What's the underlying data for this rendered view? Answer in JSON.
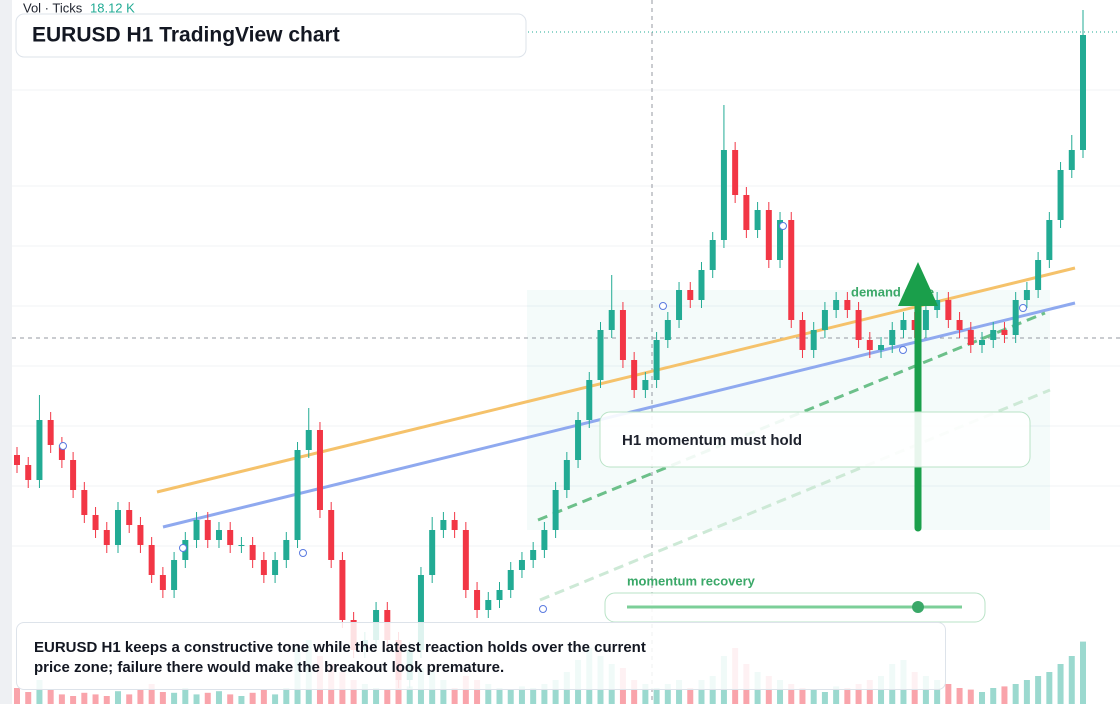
{
  "chart_data": {
    "type": "candlestick",
    "title": "EURUSD H1 TradingView chart",
    "vol_label": "Vol · Ticks",
    "vol_value": "18.12 K",
    "up_color": "#22ab94",
    "down_color": "#f23645",
    "ylim": [
      0,
      700
    ],
    "vlim": [
      0,
      100
    ],
    "candles": [
      [
        245,
        253,
        227,
        235
      ],
      [
        235,
        243,
        212,
        220
      ],
      [
        220,
        305,
        212,
        280
      ],
      [
        280,
        288,
        247,
        255
      ],
      [
        255,
        263,
        232,
        240
      ],
      [
        240,
        248,
        202,
        210
      ],
      [
        210,
        218,
        177,
        185
      ],
      [
        185,
        193,
        162,
        170
      ],
      [
        170,
        178,
        147,
        155
      ],
      [
        155,
        198,
        147,
        190
      ],
      [
        190,
        198,
        167,
        175
      ],
      [
        175,
        183,
        147,
        155
      ],
      [
        155,
        163,
        117,
        125
      ],
      [
        125,
        133,
        102,
        110
      ],
      [
        110,
        148,
        102,
        140
      ],
      [
        140,
        168,
        132,
        160
      ],
      [
        160,
        188,
        152,
        180
      ],
      [
        180,
        188,
        152,
        160
      ],
      [
        160,
        178,
        152,
        170
      ],
      [
        170,
        178,
        147,
        155
      ],
      [
        155,
        163,
        147,
        155
      ],
      [
        155,
        163,
        132,
        140
      ],
      [
        140,
        148,
        117,
        125
      ],
      [
        125,
        148,
        117,
        140
      ],
      [
        140,
        168,
        132,
        160
      ],
      [
        160,
        258,
        152,
        250
      ],
      [
        250,
        292,
        242,
        270
      ],
      [
        270,
        278,
        182,
        190
      ],
      [
        190,
        198,
        132,
        140
      ],
      [
        140,
        148,
        72,
        80
      ],
      [
        80,
        88,
        42,
        50
      ],
      [
        50,
        68,
        42,
        60
      ],
      [
        60,
        98,
        52,
        90
      ],
      [
        90,
        98,
        52,
        60
      ],
      [
        60,
        68,
        12,
        20
      ],
      [
        20,
        58,
        12,
        50
      ],
      [
        50,
        133,
        42,
        125
      ],
      [
        125,
        183,
        117,
        170
      ],
      [
        170,
        188,
        162,
        180
      ],
      [
        180,
        188,
        162,
        170
      ],
      [
        170,
        178,
        102,
        110
      ],
      [
        110,
        118,
        82,
        90
      ],
      [
        90,
        108,
        82,
        100
      ],
      [
        100,
        118,
        92,
        110
      ],
      [
        110,
        138,
        102,
        130
      ],
      [
        130,
        148,
        122,
        140
      ],
      [
        140,
        158,
        132,
        150
      ],
      [
        150,
        178,
        142,
        170
      ],
      [
        170,
        218,
        162,
        210
      ],
      [
        210,
        248,
        202,
        240
      ],
      [
        240,
        288,
        232,
        280
      ],
      [
        280,
        328,
        272,
        320
      ],
      [
        320,
        378,
        312,
        370
      ],
      [
        370,
        425,
        362,
        390
      ],
      [
        390,
        398,
        332,
        340
      ],
      [
        340,
        348,
        302,
        310
      ],
      [
        310,
        328,
        302,
        320
      ],
      [
        320,
        368,
        312,
        360
      ],
      [
        360,
        388,
        352,
        380
      ],
      [
        380,
        418,
        372,
        410
      ],
      [
        410,
        418,
        392,
        400
      ],
      [
        400,
        438,
        392,
        430
      ],
      [
        430,
        468,
        422,
        460
      ],
      [
        460,
        595,
        452,
        550
      ],
      [
        550,
        558,
        497,
        505
      ],
      [
        505,
        513,
        462,
        470
      ],
      [
        470,
        498,
        462,
        490
      ],
      [
        490,
        498,
        432,
        440
      ],
      [
        440,
        488,
        432,
        480
      ],
      [
        480,
        488,
        372,
        380
      ],
      [
        380,
        388,
        342,
        350
      ],
      [
        350,
        378,
        342,
        370
      ],
      [
        370,
        398,
        362,
        390
      ],
      [
        390,
        408,
        382,
        400
      ],
      [
        400,
        408,
        382,
        390
      ],
      [
        390,
        398,
        352,
        360
      ],
      [
        360,
        368,
        342,
        350
      ],
      [
        350,
        363,
        342,
        355
      ],
      [
        355,
        378,
        347,
        370
      ],
      [
        370,
        388,
        362,
        380
      ],
      [
        380,
        388,
        362,
        370
      ],
      [
        370,
        398,
        362,
        390
      ],
      [
        390,
        408,
        382,
        400
      ],
      [
        400,
        408,
        372,
        380
      ],
      [
        380,
        388,
        362,
        370
      ],
      [
        370,
        378,
        347,
        355
      ],
      [
        355,
        368,
        347,
        360
      ],
      [
        360,
        378,
        352,
        370
      ],
      [
        370,
        378,
        357,
        365
      ],
      [
        365,
        408,
        357,
        400
      ],
      [
        400,
        418,
        392,
        410
      ],
      [
        410,
        448,
        402,
        440
      ],
      [
        440,
        488,
        432,
        480
      ],
      [
        480,
        538,
        472,
        530
      ],
      [
        530,
        565,
        522,
        550
      ],
      [
        550,
        690,
        542,
        665
      ]
    ],
    "volumes": [
      20,
      15,
      30,
      18,
      12,
      10,
      14,
      12,
      10,
      16,
      12,
      18,
      25,
      15,
      14,
      20,
      12,
      14,
      16,
      12,
      10,
      14,
      18,
      12,
      20,
      70,
      80,
      60,
      50,
      40,
      30,
      25,
      20,
      18,
      30,
      22,
      45,
      40,
      30,
      20,
      35,
      30,
      25,
      20,
      18,
      22,
      20,
      25,
      30,
      40,
      55,
      70,
      60,
      50,
      45,
      30,
      25,
      20,
      25,
      30,
      20,
      30,
      35,
      60,
      70,
      50,
      40,
      35,
      30,
      25,
      20,
      18,
      15,
      22,
      20,
      25,
      30,
      35,
      50,
      55,
      40,
      35,
      30,
      25,
      20,
      18,
      15,
      20,
      22,
      25,
      30,
      35,
      40,
      50,
      60,
      78
    ],
    "annotations": {
      "zone_label": "demand zone",
      "callout": "H1 momentum must hold",
      "slider_label": "momentum recovery",
      "summary": "EURUSD H1 keeps a constructive tone while the latest reaction holds over the current price zone; failure there would make the breakout look premature."
    }
  }
}
